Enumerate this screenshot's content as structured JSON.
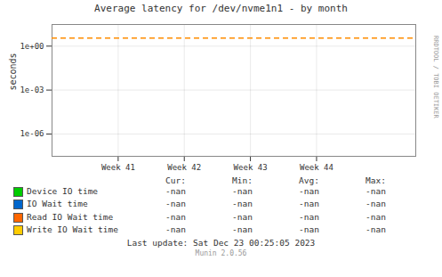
{
  "chart_data": {
    "type": "line",
    "title": "Average latency for /dev/nvme1n1 - by month",
    "ylabel": "seconds",
    "log": "y",
    "grid": true,
    "xlim": [
      40.0,
      45.5
    ],
    "xticks": [
      {
        "value": 41,
        "label": "Week 41"
      },
      {
        "value": 42,
        "label": "Week 42"
      },
      {
        "value": 43,
        "label": "Week 43"
      },
      {
        "value": 44,
        "label": "Week 44"
      }
    ],
    "ylim": [
      3e-08,
      30.0
    ],
    "yticks": [
      {
        "value": 1.0,
        "label": "1e+00"
      },
      {
        "value": 0.001,
        "label": "1e-03"
      },
      {
        "value": 1e-06,
        "label": "1e-06"
      }
    ],
    "annotations": [
      {
        "type": "hline",
        "y": 3.5,
        "color": "#ff8c00",
        "line_style": "dashed"
      }
    ],
    "stat_labels": [
      "Cur:",
      "Min:",
      "Avg:",
      "Max:"
    ],
    "series": [
      {
        "name": "Device IO time",
        "color": "#00cc00",
        "values": [],
        "stats": [
          "-nan",
          "-nan",
          "-nan",
          "-nan"
        ]
      },
      {
        "name": "IO Wait time",
        "color": "#0066cc",
        "values": [],
        "stats": [
          "-nan",
          "-nan",
          "-nan",
          "-nan"
        ]
      },
      {
        "name": "Read IO Wait time",
        "color": "#ff6600",
        "values": [],
        "stats": [
          "-nan",
          "-nan",
          "-nan",
          "-nan"
        ]
      },
      {
        "name": "Write IO Wait time",
        "color": "#ffcc00",
        "values": [],
        "stats": [
          "-nan",
          "-nan",
          "-nan",
          "-nan"
        ]
      }
    ],
    "last_update": "Last update: Sat Dec 23 00:25:05 2023",
    "footer": "Munin 2.0.56",
    "side_label": "RRDTOOL / TOBI OETIKER"
  }
}
